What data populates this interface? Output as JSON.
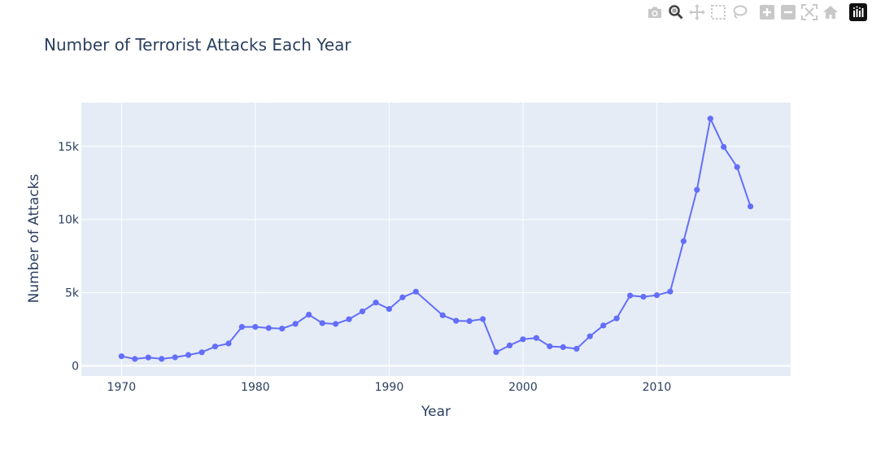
{
  "modebar": {
    "buttons": [
      {
        "name": "camera-icon",
        "group": 1
      },
      {
        "name": "zoom-icon",
        "group": 1,
        "active": true
      },
      {
        "name": "pan-icon",
        "group": 1
      },
      {
        "name": "box-select-icon",
        "group": 1
      },
      {
        "name": "lasso-select-icon",
        "group": 1
      },
      {
        "name": "zoom-in-icon",
        "group": 2
      },
      {
        "name": "zoom-out-icon",
        "group": 2
      },
      {
        "name": "autoscale-icon",
        "group": 2
      },
      {
        "name": "reset-axes-icon",
        "group": 2
      },
      {
        "name": "plotly-logo-icon",
        "group": 3
      }
    ],
    "icon_color": "#c8c8c8",
    "active_color": "#444444"
  },
  "chart_data": {
    "type": "line",
    "mode": "lines+markers",
    "title": "Number of Terrorist Attacks Each Year",
    "xlabel": "Year",
    "ylabel": "Number of Attacks",
    "xlim": [
      1967,
      2020
    ],
    "ylim": [
      -700,
      18000
    ],
    "xticks": [
      1970,
      1980,
      1990,
      2000,
      2010
    ],
    "yticks": [
      0,
      5000,
      10000,
      15000
    ],
    "ytick_labels": [
      "0",
      "5k",
      "10k",
      "15k"
    ],
    "grid": true,
    "plot_bgcolor": "#e5ecf6",
    "line_color": "#636efa",
    "x": [
      1970,
      1971,
      1972,
      1973,
      1974,
      1975,
      1976,
      1977,
      1978,
      1979,
      1980,
      1981,
      1982,
      1983,
      1984,
      1985,
      1986,
      1987,
      1988,
      1989,
      1990,
      1991,
      1992,
      1994,
      1995,
      1996,
      1997,
      1998,
      1999,
      2000,
      2001,
      2002,
      2003,
      2004,
      2005,
      2006,
      2007,
      2008,
      2009,
      2010,
      2011,
      2012,
      2013,
      2014,
      2015,
      2016,
      2017
    ],
    "y": [
      651,
      471,
      568,
      473,
      581,
      740,
      923,
      1319,
      1526,
      2662,
      2662,
      2586,
      2544,
      2870,
      3495,
      2915,
      2860,
      3183,
      3721,
      4324,
      3887,
      4683,
      5071,
      3456,
      3081,
      3058,
      3197,
      934,
      1395,
      1814,
      1906,
      1333,
      1278,
      1166,
      2017,
      2758,
      3242,
      4805,
      4721,
      4826,
      5076,
      8522,
      12036,
      16903,
      14965,
      13587,
      10900
    ]
  }
}
